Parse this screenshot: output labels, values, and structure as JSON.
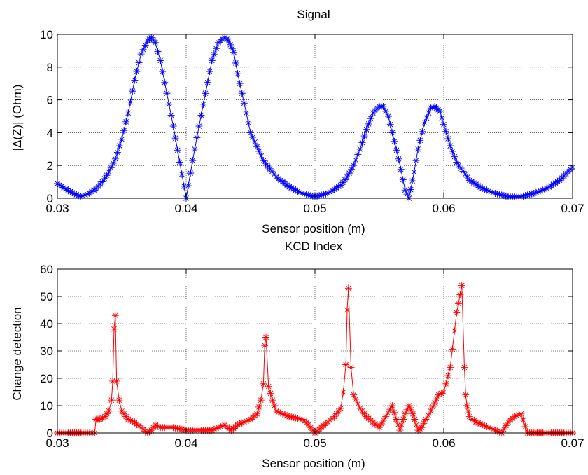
{
  "chart_data": [
    {
      "type": "line",
      "title": "Signal",
      "xlabel": "Sensor position (m)",
      "ylabel": "|Δ(Z)| (Ohm)",
      "xlim": [
        0.03,
        0.07
      ],
      "ylim": [
        0,
        10
      ],
      "xticks": [
        0.03,
        0.04,
        0.05,
        0.06,
        0.07
      ],
      "xtick_labels": [
        "0.03",
        "0.04",
        "0.05",
        "0.06",
        "0.07"
      ],
      "yticks": [
        0,
        2,
        4,
        6,
        8,
        10
      ],
      "ytick_labels": [
        "0",
        "2",
        "4",
        "6",
        "8",
        "10"
      ],
      "grid": true,
      "marker": "*",
      "color": "#0000ff",
      "series": [
        {
          "x": [
            0.03,
            0.031,
            0.0318,
            0.0325,
            0.033,
            0.0335,
            0.034,
            0.0345,
            0.035,
            0.0355,
            0.036,
            0.0365,
            0.037,
            0.0373,
            0.0376,
            0.038,
            0.0385,
            0.039,
            0.0395,
            0.04,
            0.0405,
            0.041,
            0.0415,
            0.042,
            0.0425,
            0.043,
            0.0433,
            0.0437,
            0.044,
            0.0445,
            0.045,
            0.046,
            0.047,
            0.048,
            0.049,
            0.05,
            0.051,
            0.052,
            0.0525,
            0.053,
            0.0535,
            0.054,
            0.0545,
            0.055,
            0.0553,
            0.0557,
            0.056,
            0.0565,
            0.057,
            0.0573,
            0.0577,
            0.058,
            0.0585,
            0.059,
            0.0593,
            0.0597,
            0.06,
            0.0605,
            0.061,
            0.062,
            0.063,
            0.064,
            0.065,
            0.066,
            0.067,
            0.068,
            0.069,
            0.07
          ],
          "y": [
            0.9,
            0.4,
            0.1,
            0.3,
            0.6,
            1.0,
            1.6,
            2.4,
            3.6,
            5.2,
            7.2,
            8.8,
            9.6,
            9.8,
            9.5,
            8.4,
            6.4,
            4.4,
            2.2,
            0.0,
            2.3,
            4.4,
            6.4,
            8.4,
            9.5,
            9.8,
            9.6,
            8.9,
            7.6,
            5.8,
            4.0,
            2.3,
            1.3,
            0.7,
            0.3,
            0.1,
            0.3,
            0.8,
            1.3,
            2.0,
            3.0,
            4.2,
            5.2,
            5.6,
            5.6,
            5.0,
            4.0,
            2.4,
            0.5,
            0.0,
            1.6,
            3.0,
            4.6,
            5.5,
            5.6,
            5.3,
            4.5,
            3.2,
            2.2,
            1.1,
            0.6,
            0.3,
            0.1,
            0.1,
            0.3,
            0.6,
            1.1,
            1.9
          ]
        }
      ]
    },
    {
      "type": "line",
      "title": "KCD Index",
      "xlabel": "Sensor position (m)",
      "ylabel": "Change detection",
      "xlim": [
        0.03,
        0.07
      ],
      "ylim": [
        0,
        60
      ],
      "xticks": [
        0.03,
        0.04,
        0.05,
        0.06,
        0.07
      ],
      "xtick_labels": [
        "0.03",
        "0.04",
        "0.05",
        "0.06",
        "0.07"
      ],
      "yticks": [
        0,
        10,
        20,
        30,
        40,
        50,
        60
      ],
      "ytick_labels": [
        "0",
        "10",
        "20",
        "30",
        "40",
        "50",
        "60"
      ],
      "grid": true,
      "marker": "*",
      "color": "#ff0000",
      "series": [
        {
          "x": [
            0.03,
            0.0315,
            0.0325,
            0.0329,
            0.033,
            0.0333,
            0.0337,
            0.034,
            0.0342,
            0.0343,
            0.0344,
            0.0345,
            0.0346,
            0.0348,
            0.035,
            0.0355,
            0.036,
            0.0365,
            0.037,
            0.0373,
            0.0376,
            0.038,
            0.039,
            0.04,
            0.041,
            0.042,
            0.0425,
            0.043,
            0.0435,
            0.044,
            0.045,
            0.0455,
            0.0458,
            0.046,
            0.0461,
            0.0462,
            0.0464,
            0.0467,
            0.047,
            0.048,
            0.049,
            0.0495,
            0.05,
            0.0505,
            0.051,
            0.0515,
            0.052,
            0.0522,
            0.0524,
            0.0525,
            0.0526,
            0.0528,
            0.053,
            0.0535,
            0.054,
            0.0545,
            0.055,
            0.0555,
            0.056,
            0.0563,
            0.0566,
            0.057,
            0.0573,
            0.0576,
            0.058,
            0.0583,
            0.0586,
            0.059,
            0.0593,
            0.0596,
            0.06,
            0.0605,
            0.061,
            0.0614,
            0.0616,
            0.0617,
            0.0618,
            0.0619,
            0.062,
            0.0622,
            0.0625,
            0.063,
            0.0635,
            0.064,
            0.0645,
            0.065,
            0.0655,
            0.066,
            0.0665,
            0.067,
            0.0671,
            0.068,
            0.069,
            0.07
          ],
          "y": [
            0,
            0,
            0,
            0,
            5,
            5,
            6,
            8,
            12,
            19,
            38,
            43,
            19,
            12,
            8,
            5,
            4,
            2,
            0,
            1,
            3,
            2,
            2,
            1,
            1,
            1,
            2,
            3,
            1,
            3,
            5,
            7,
            12,
            18,
            32,
            35,
            17,
            12,
            8,
            6,
            5,
            3,
            0,
            2,
            4,
            6,
            9,
            15,
            25,
            45,
            53,
            24,
            14,
            9,
            6,
            4,
            2,
            6,
            10,
            5,
            1,
            7,
            10,
            7,
            1,
            2,
            5,
            8,
            11,
            14,
            15,
            24,
            44,
            54,
            24,
            14,
            10,
            8,
            6,
            5,
            4,
            3,
            2,
            1,
            0,
            4,
            6,
            7,
            0,
            0,
            0,
            0,
            0,
            0
          ]
        }
      ]
    }
  ]
}
